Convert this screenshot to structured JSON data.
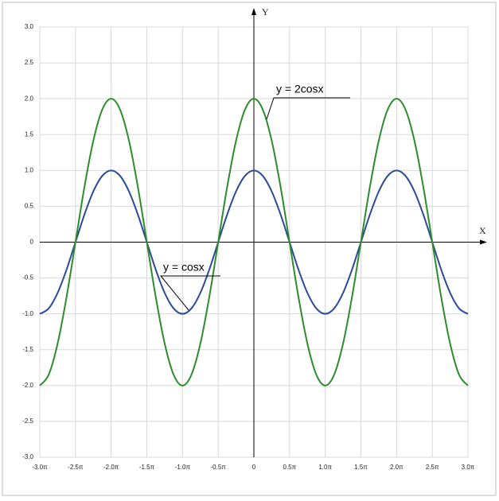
{
  "chart_data": {
    "type": "line",
    "x": [
      -3,
      -2.875,
      -2.75,
      -2.625,
      -2.5,
      -2.375,
      -2.25,
      -2.125,
      -2,
      -1.875,
      -1.75,
      -1.625,
      -1.5,
      -1.375,
      -1.25,
      -1.125,
      -1,
      -0.875,
      -0.75,
      -0.625,
      -0.5,
      -0.375,
      -0.25,
      -0.125,
      0,
      0.125,
      0.25,
      0.375,
      0.5,
      0.625,
      0.75,
      0.875,
      1,
      1.125,
      1.25,
      1.375,
      1.5,
      1.625,
      1.75,
      1.875,
      2,
      2.125,
      2.25,
      2.375,
      2.5,
      2.625,
      2.75,
      2.875,
      3
    ],
    "series": [
      {
        "color": "#2a4a96",
        "values": [
          -1,
          -0.924,
          -0.707,
          -0.383,
          0,
          0.383,
          0.707,
          0.924,
          1,
          0.924,
          0.707,
          0.383,
          0,
          -0.383,
          -0.707,
          -0.924,
          -1,
          -0.924,
          -0.707,
          -0.383,
          0,
          0.383,
          0.707,
          0.924,
          1,
          0.924,
          0.707,
          0.383,
          0,
          -0.383,
          -0.707,
          -0.924,
          -1,
          -0.924,
          -0.707,
          -0.383,
          0,
          0.383,
          0.707,
          0.924,
          1,
          0.924,
          0.707,
          0.383,
          0,
          -0.383,
          -0.707,
          -0.924,
          -1
        ]
      },
      {
        "color": "#2e8b2e",
        "values": [
          -2,
          -1.848,
          -1.414,
          -0.766,
          0,
          0.766,
          1.414,
          1.848,
          2,
          1.848,
          1.414,
          0.766,
          0,
          -0.766,
          -1.414,
          -1.848,
          -2,
          -1.848,
          -1.414,
          -0.766,
          0,
          0.766,
          1.414,
          1.848,
          2,
          1.848,
          1.414,
          0.766,
          0,
          -0.766,
          -1.414,
          -1.848,
          -2,
          -1.848,
          -1.414,
          -0.766,
          0,
          0.766,
          1.414,
          1.848,
          2,
          1.848,
          1.414,
          0.766,
          0,
          -0.766,
          -1.414,
          -1.848,
          -2
        ]
      }
    ],
    "xlim": [
      -3,
      3
    ],
    "ylim": [
      -3,
      3
    ],
    "xticks": [
      {
        "value": -3,
        "label": "-3.0π"
      },
      {
        "value": -2.5,
        "label": "-2.5π"
      },
      {
        "value": -2,
        "label": "-2.0π"
      },
      {
        "value": -1.5,
        "label": "-1.5π"
      },
      {
        "value": -1,
        "label": "-1.0π"
      },
      {
        "value": -0.5,
        "label": "-0.5π"
      },
      0,
      {
        "value": 0.5,
        "label": "0.5π"
      },
      {
        "value": 1,
        "label": "1.0π"
      },
      {
        "value": 1.5,
        "label": "1.5π"
      },
      {
        "value": 2,
        "label": "2.0π"
      },
      {
        "value": 2.5,
        "label": "2.5π"
      },
      {
        "value": 3,
        "label": "3.0π"
      }
    ],
    "yticks": [
      {
        "value": -3,
        "label": "-3.0"
      },
      -2.5,
      {
        "value": -2,
        "label": "-2.0"
      },
      -1.5,
      {
        "value": -1,
        "label": "-1.0"
      },
      -0.5,
      0,
      0.5,
      {
        "value": 1,
        "label": "1.0"
      },
      1.5,
      {
        "value": 2,
        "label": "2.0"
      },
      2.5,
      {
        "value": 3,
        "label": "3.0"
      }
    ],
    "grid": true,
    "x_label": "X",
    "y_label": "Y",
    "annotations": [
      {
        "text": "y = 2cosx"
      },
      {
        "text": "y = cosx"
      }
    ]
  }
}
